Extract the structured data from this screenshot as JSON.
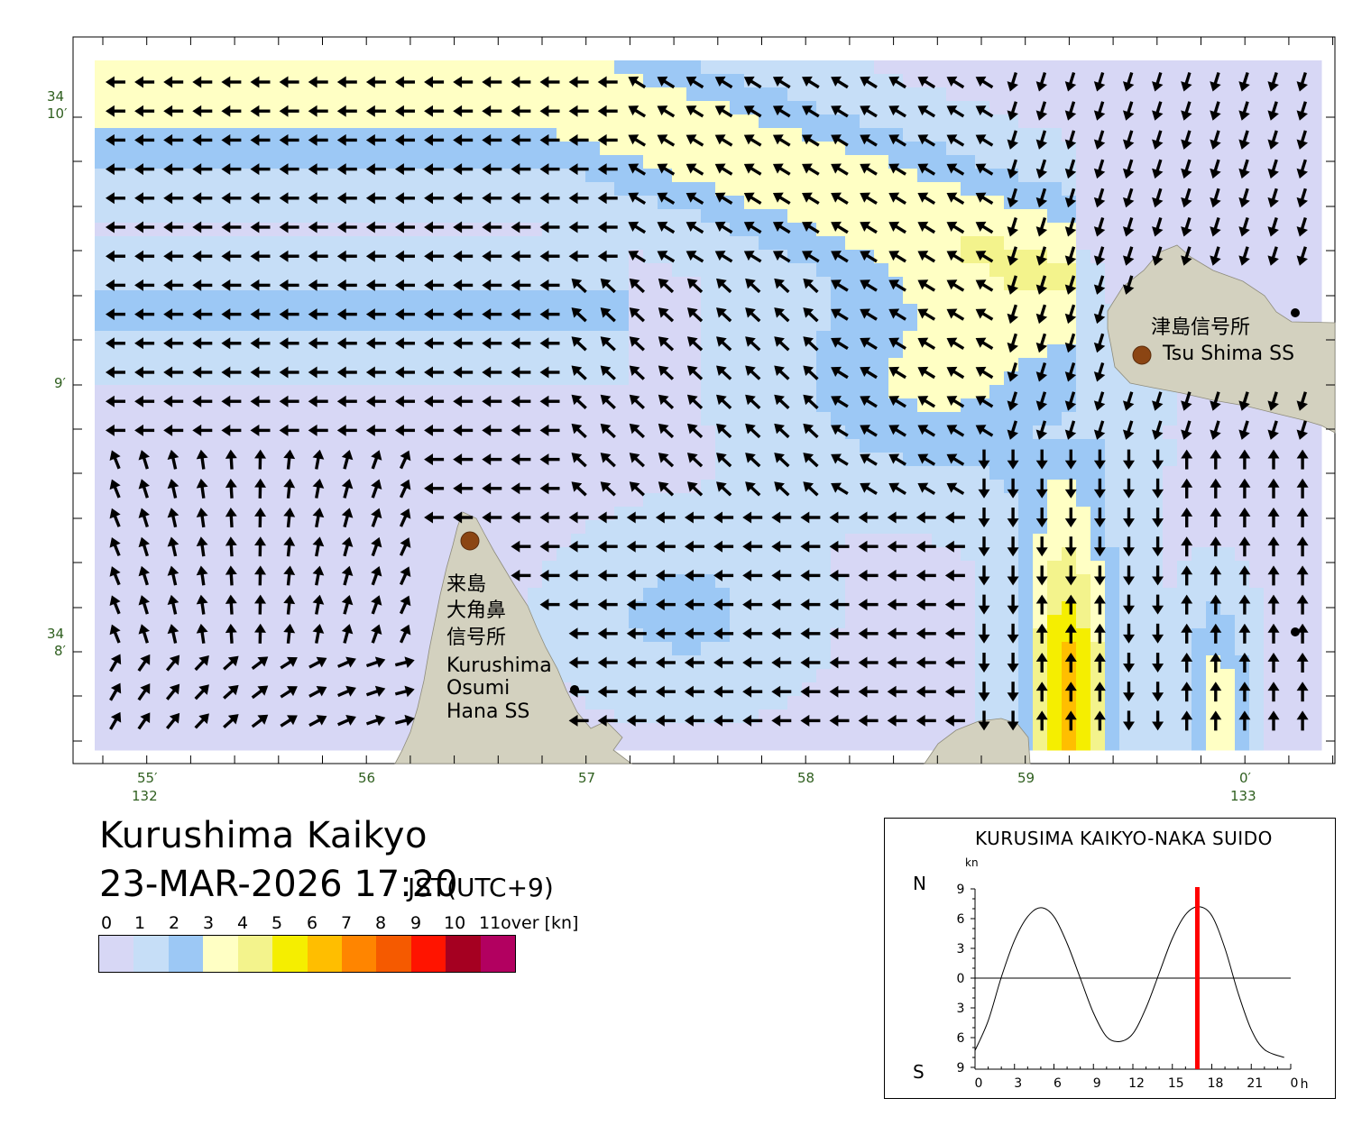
{
  "map": {
    "lat_labels": [
      {
        "deg": "34",
        "min": "10′"
      },
      {
        "deg": "",
        "min": "9′"
      },
      {
        "deg": "34",
        "min": "8′"
      }
    ],
    "lon_labels": [
      {
        "min": "55′",
        "deg": "132"
      },
      {
        "min": "56",
        "deg": ""
      },
      {
        "min": "57",
        "deg": ""
      },
      {
        "min": "58",
        "deg": ""
      },
      {
        "min": "59",
        "deg": ""
      },
      {
        "min": "0′",
        "deg": "133"
      }
    ],
    "stations": {
      "tsushima_ja": "津島信号所",
      "tsushima_en": "Tsu Shima SS",
      "kurushima_ja_1": "来島",
      "kurushima_ja_2": "大角鼻",
      "kurushima_ja_3": "信号所",
      "kurushima_en_1": "Kurushima",
      "kurushima_en_2": "Osumi",
      "kurushima_en_3": "Hana SS"
    },
    "land_color": "#d3d1bf",
    "station_color": "#8b4513"
  },
  "title": {
    "place": "Kurushima Kaikyo",
    "datetime": "23-MAR-2026 17:20",
    "timezone": "JST(UTC+9)"
  },
  "legend": {
    "labels": [
      "0",
      "1",
      "2",
      "3",
      "4",
      "5",
      "6",
      "7",
      "8",
      "9",
      "10",
      "11over [kn]"
    ],
    "colors": [
      "#d7d7f5",
      "#c6def7",
      "#9cc8f5",
      "#ffffc4",
      "#f3f38c",
      "#f5ee00",
      "#ffbe00",
      "#ff8500",
      "#f55a00",
      "#ff1400",
      "#a50021",
      "#b20060"
    ]
  },
  "timeseries": {
    "title": "KURUSIMA KAIKYO-NAKA SUIDO",
    "unit": "kn",
    "north": "N",
    "south": "S",
    "y_ticks": [
      "9",
      "6",
      "3",
      "0",
      "3",
      "6",
      "9"
    ],
    "x_ticks": [
      "0",
      "3",
      "6",
      "9",
      "12",
      "15",
      "18",
      "21",
      "0"
    ],
    "x_unit": "h",
    "current_time_h": 16.9,
    "curve_color": "#000000",
    "marker_color": "#ff0000",
    "chart_data": {
      "type": "line",
      "x": [
        0,
        1,
        2,
        3,
        4,
        5,
        6,
        7,
        8,
        9,
        10,
        11,
        12,
        13,
        14,
        15,
        16,
        17,
        18,
        19,
        20,
        21,
        22,
        23.5
      ],
      "y": [
        -7.3,
        -4.3,
        0.1,
        3.8,
        6.2,
        7.1,
        6.2,
        3.5,
        0.0,
        -3.5,
        -5.9,
        -6.4,
        -5.6,
        -3.0,
        0.5,
        4.0,
        6.4,
        7.2,
        6.3,
        3.0,
        -1.5,
        -5.2,
        -7.2,
        -8.0
      ],
      "xlabel": "h",
      "ylabel": "kn",
      "ylim": [
        -9,
        9
      ],
      "xlim": [
        0,
        24
      ]
    }
  }
}
